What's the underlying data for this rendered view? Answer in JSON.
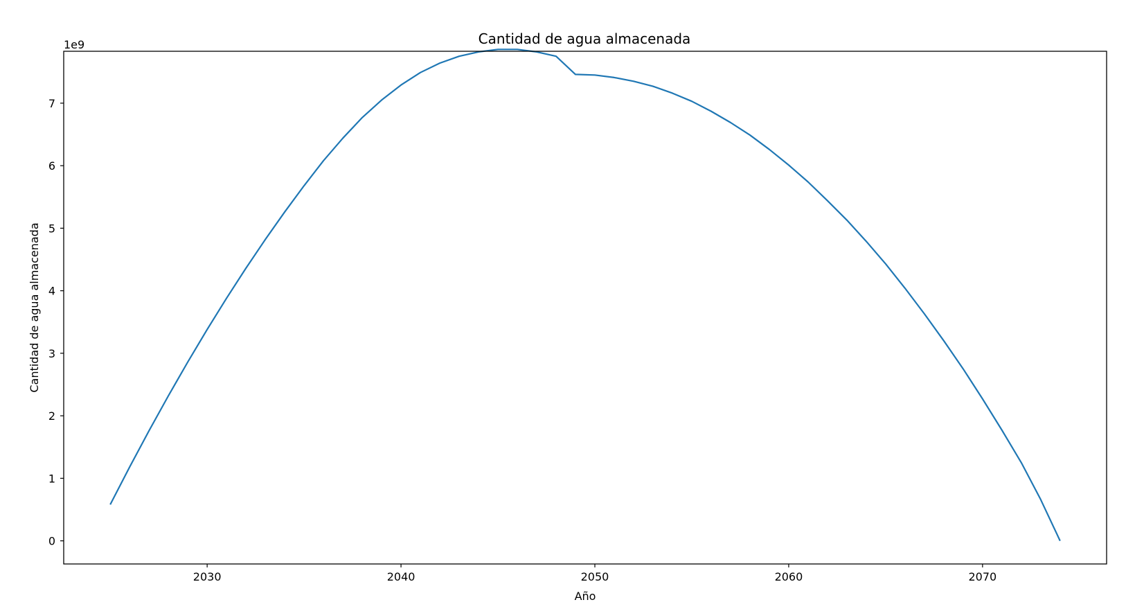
{
  "chart_data": {
    "type": "line",
    "title": "Cantidad de agua almacenada",
    "xlabel": "Año",
    "ylabel": "Cantidad de agua almacenada",
    "y_offset_label": "1e9",
    "y_scale": 1000000000,
    "xlim": [
      2022.6,
      2076.4
    ],
    "ylim": [
      -0.37,
      7.83
    ],
    "x_ticks": [
      2030,
      2040,
      2050,
      2060,
      2070
    ],
    "x_tick_labels": [
      "2030",
      "2040",
      "2050",
      "2060",
      "2070"
    ],
    "y_ticks": [
      0,
      1,
      2,
      3,
      4,
      5,
      6,
      7
    ],
    "y_tick_labels": [
      "0",
      "1",
      "2",
      "3",
      "4",
      "5",
      "6",
      "7"
    ],
    "grid": false,
    "series": [
      {
        "color": "#1f77b4",
        "x": [
          2025,
          2026,
          2027,
          2028,
          2029,
          2030,
          2031,
          2032,
          2033,
          2034,
          2035,
          2036,
          2037,
          2038,
          2039,
          2040,
          2041,
          2042,
          2043,
          2044,
          2045,
          2046,
          2047,
          2048,
          2049,
          2050,
          2051,
          2052,
          2053,
          2054,
          2055,
          2056,
          2057,
          2058,
          2059,
          2060,
          2061,
          2062,
          2063,
          2064,
          2065,
          2066,
          2067,
          2068,
          2069,
          2070,
          2071,
          2072,
          2073,
          2074
        ],
        "y": [
          0.58,
          1.18,
          1.76,
          2.32,
          2.86,
          3.38,
          3.88,
          4.36,
          4.82,
          5.26,
          5.68,
          6.08,
          6.44,
          6.77,
          7.05,
          7.29,
          7.49,
          7.64,
          7.75,
          7.82,
          7.86,
          7.86,
          7.82,
          7.75,
          7.46,
          7.45,
          7.41,
          7.35,
          7.27,
          7.16,
          7.03,
          6.87,
          6.69,
          6.49,
          6.26,
          6.01,
          5.74,
          5.44,
          5.13,
          4.79,
          4.43,
          4.04,
          3.63,
          3.2,
          2.75,
          2.27,
          1.77,
          1.25,
          0.66,
          0.0
        ]
      }
    ]
  }
}
